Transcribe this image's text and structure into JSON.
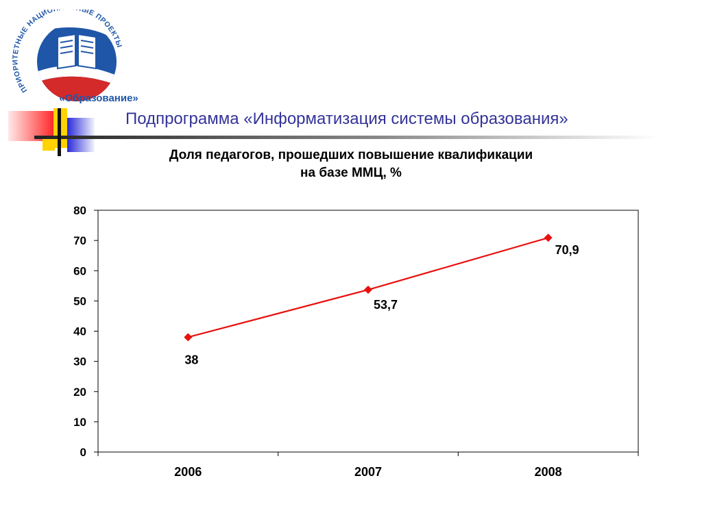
{
  "logo": {
    "ring_text": "ПРИОРИТЕТНЫЕ НАЦИОНАЛЬНЫЕ ПРОЕКТЫ",
    "name": "«Образование»"
  },
  "slide_title": "Подпрограмма «Информатизация системы образования»",
  "chart_data": {
    "type": "line",
    "title": [
      "Доля педагогов, прошедших повышение квалификации",
      "на базе ММЦ, %"
    ],
    "categories": [
      "2006",
      "2007",
      "2008"
    ],
    "series": [
      {
        "values": [
          38,
          53.7,
          70.9
        ],
        "labels": [
          "38",
          "53,7",
          "70,9"
        ],
        "color": "#e8110f"
      }
    ],
    "ylim": [
      0,
      80
    ],
    "yticks": [
      0,
      10,
      20,
      30,
      40,
      50,
      60,
      70,
      80
    ],
    "ytick_labels": [
      "0",
      "10",
      "20",
      "30",
      "40",
      "50",
      "60",
      "70",
      "80"
    ],
    "grid": false,
    "legend": false
  },
  "colors": {
    "title": "#333399",
    "logo_blue": "#1f56a8",
    "logo_red": "#d42a2a",
    "deco_yellow": "#ffd200",
    "deco_red": "#ff2a2a",
    "deco_blue": "#2a2ad8"
  }
}
